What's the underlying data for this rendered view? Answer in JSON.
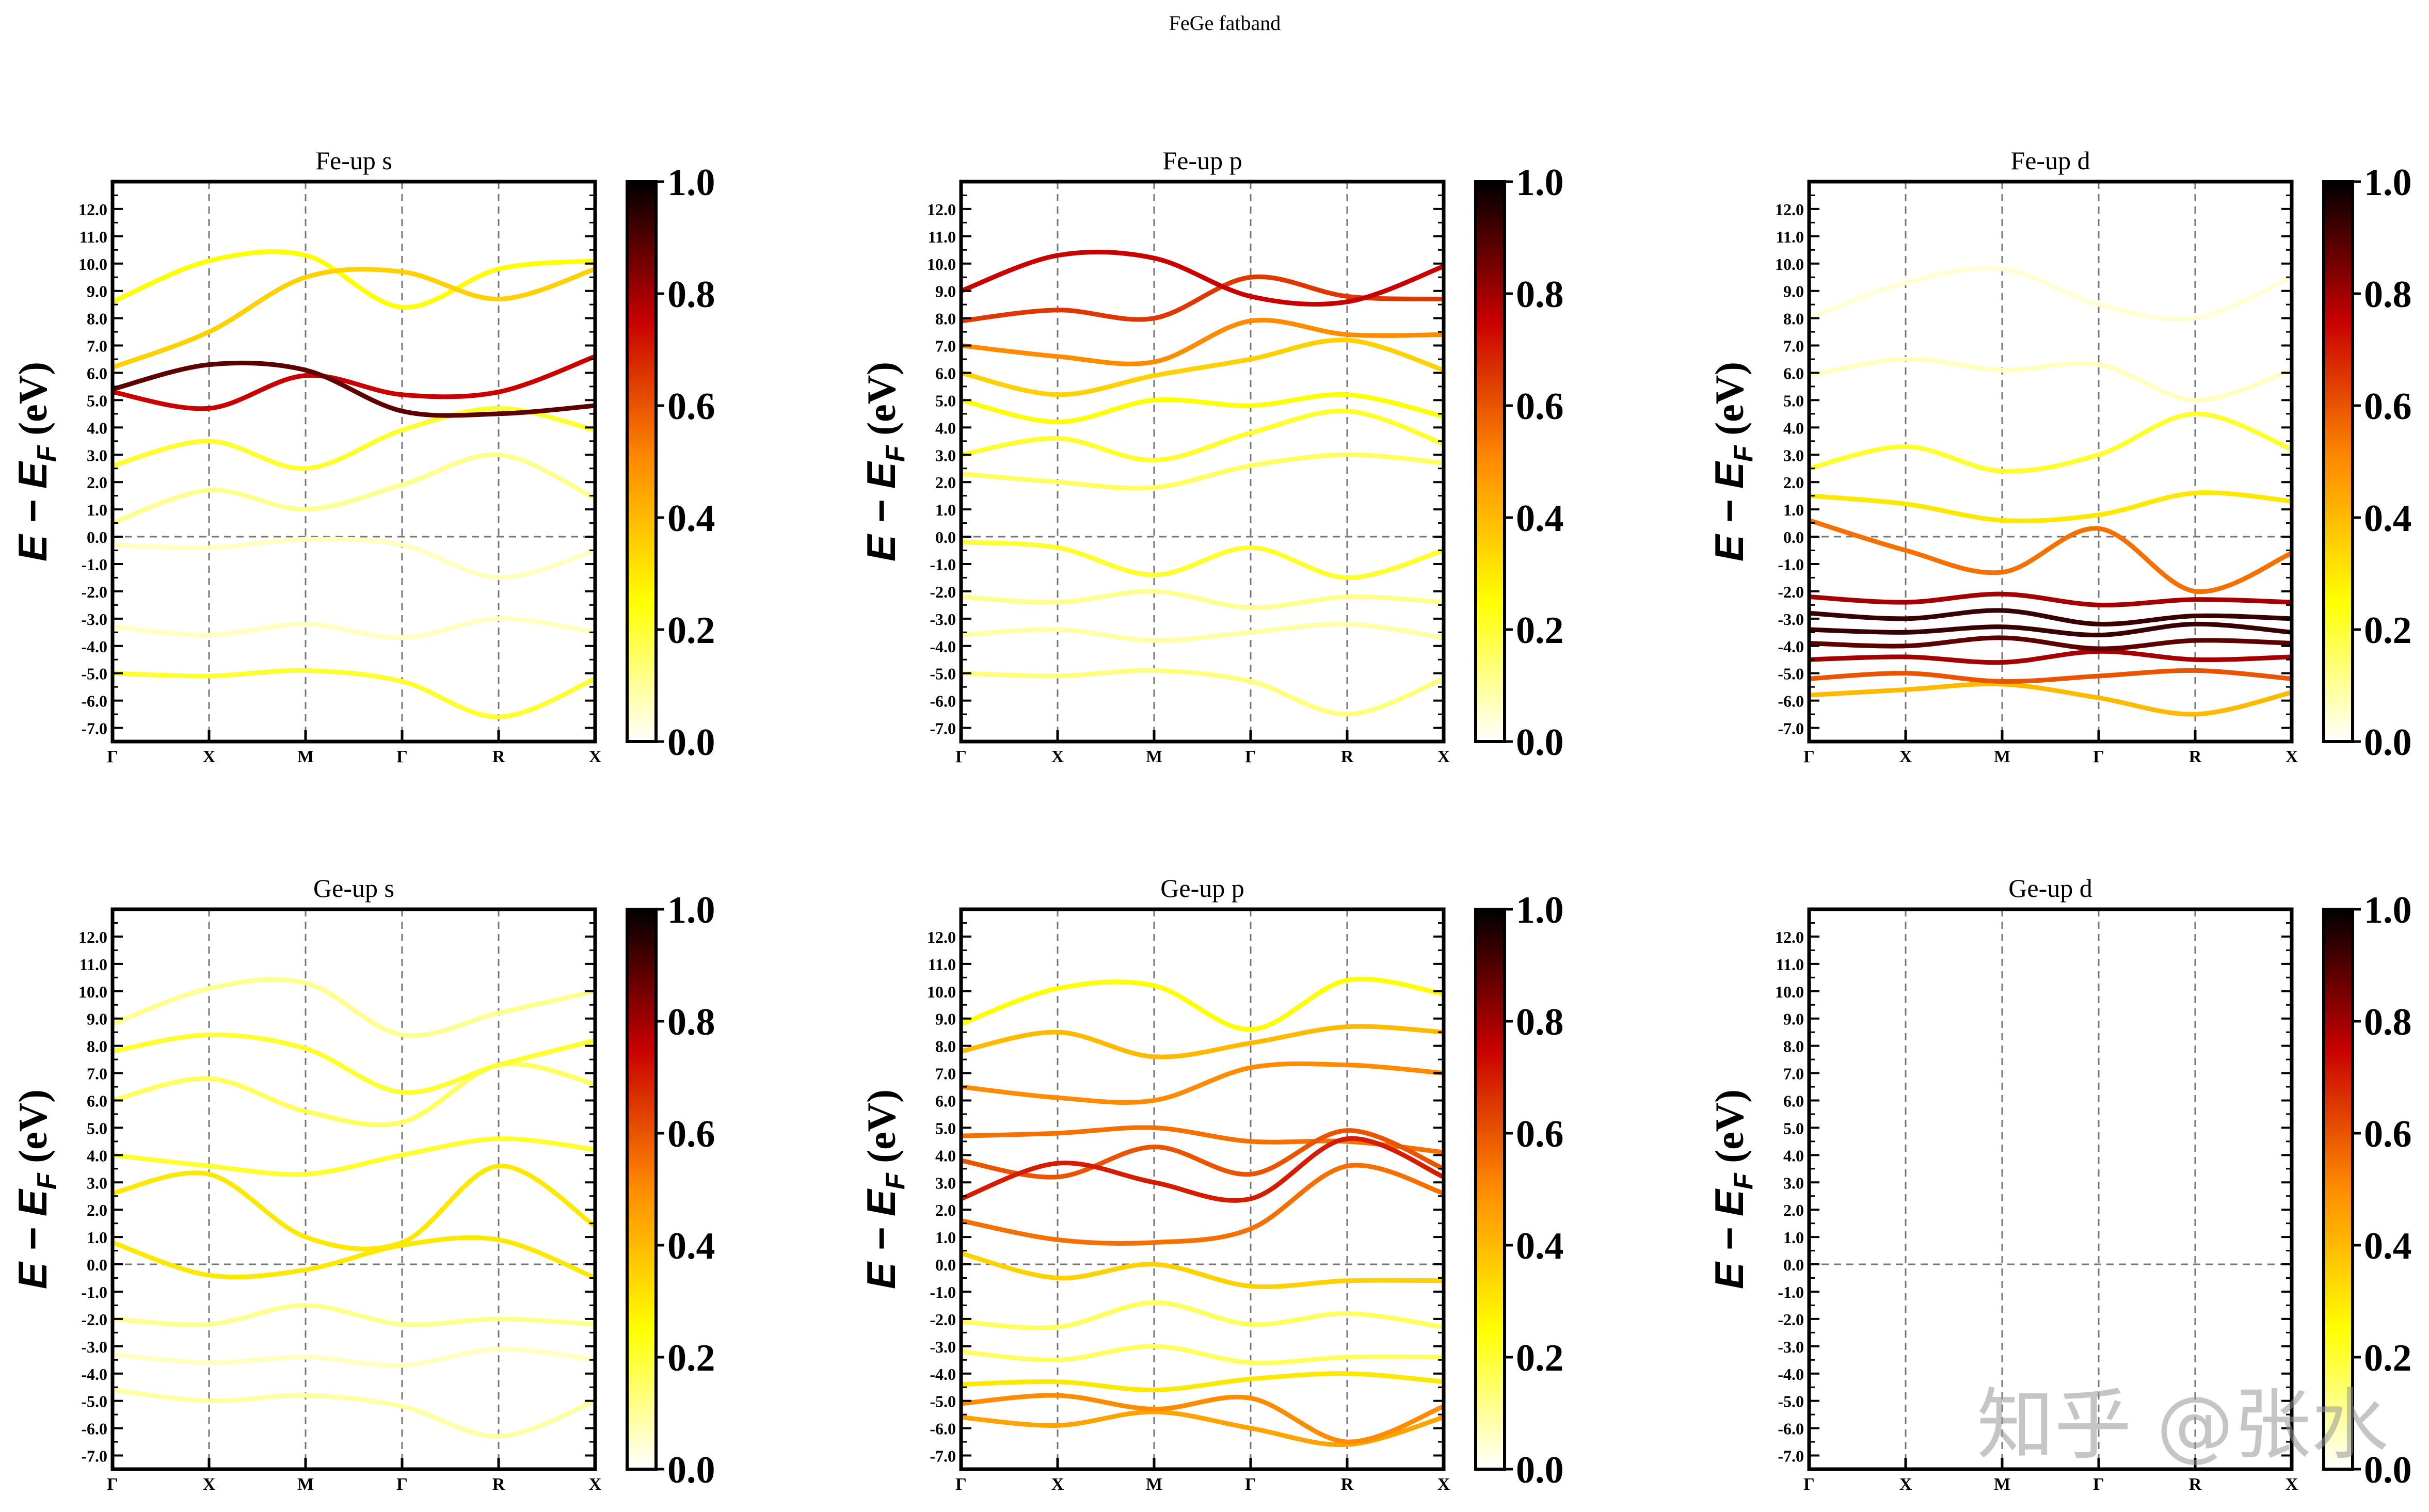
{
  "figure_title": "FeGe fatband",
  "watermark": "知乎 @张水",
  "chart_data": {
    "type": "fatband",
    "ylabel": "E − E_F (eV)",
    "ylim": [
      -7.5,
      13.0
    ],
    "yticks": [
      "-7.0",
      "-6.0",
      "-5.0",
      "-4.0",
      "-3.0",
      "-2.0",
      "-1.0",
      "0.0",
      "1.0",
      "2.0",
      "3.0",
      "4.0",
      "5.0",
      "6.0",
      "7.0",
      "8.0",
      "9.0",
      "10.0",
      "11.0",
      "12.0"
    ],
    "kpath": [
      "Γ",
      "X",
      "M",
      "Γ",
      "R",
      "X"
    ],
    "colorbar": {
      "cmap": "hot_r",
      "ticks": [
        "0.0",
        "0.2",
        "0.4",
        "0.6",
        "0.8",
        "1.0"
      ],
      "range": [
        0,
        1
      ]
    },
    "fermi_level": 0.0,
    "panels": [
      {
        "title": "Fe-up s",
        "bands": [
          {
            "e": [
              5.4,
              6.3,
              6.1,
              4.6,
              4.5,
              4.8
            ],
            "w": 0.9
          },
          {
            "e": [
              5.3,
              4.7,
              5.9,
              5.2,
              5.3,
              6.6
            ],
            "w": 0.75
          },
          {
            "e": [
              6.2,
              7.5,
              9.5,
              9.7,
              8.7,
              9.8
            ],
            "w": 0.35
          },
          {
            "e": [
              8.6,
              10.1,
              10.3,
              8.4,
              9.8,
              10.1
            ],
            "w": 0.25
          },
          {
            "e": [
              2.6,
              3.5,
              2.5,
              3.9,
              4.7,
              3.9
            ],
            "w": 0.2
          },
          {
            "e": [
              0.5,
              1.7,
              1.0,
              1.9,
              3.0,
              1.4
            ],
            "w": 0.1
          },
          {
            "e": [
              -0.3,
              -0.4,
              -0.1,
              -0.3,
              -1.5,
              -0.5
            ],
            "w": 0.05
          },
          {
            "e": [
              -3.3,
              -3.6,
              -3.2,
              -3.7,
              -3.0,
              -3.5
            ],
            "w": 0.05
          },
          {
            "e": [
              -5.0,
              -5.1,
              -4.9,
              -5.3,
              -6.6,
              -5.2
            ],
            "w": 0.2
          }
        ]
      },
      {
        "title": "Fe-up p",
        "bands": [
          {
            "e": [
              9.0,
              10.3,
              10.2,
              8.8,
              8.6,
              9.9
            ],
            "w": 0.75
          },
          {
            "e": [
              7.9,
              8.3,
              8.0,
              9.5,
              8.8,
              8.7
            ],
            "w": 0.65
          },
          {
            "e": [
              7.0,
              6.6,
              6.4,
              7.9,
              7.4,
              7.4
            ],
            "w": 0.5
          },
          {
            "e": [
              6.0,
              5.2,
              5.9,
              6.5,
              7.2,
              6.1
            ],
            "w": 0.35
          },
          {
            "e": [
              5.0,
              4.2,
              5.0,
              4.8,
              5.2,
              4.4
            ],
            "w": 0.25
          },
          {
            "e": [
              3.0,
              3.6,
              2.8,
              3.8,
              4.6,
              3.4
            ],
            "w": 0.2
          },
          {
            "e": [
              2.3,
              2.0,
              1.8,
              2.6,
              3.0,
              2.7
            ],
            "w": 0.15
          },
          {
            "e": [
              -0.2,
              -0.4,
              -1.4,
              -0.4,
              -1.5,
              -0.5
            ],
            "w": 0.2
          },
          {
            "e": [
              -2.2,
              -2.4,
              -2.0,
              -2.6,
              -2.2,
              -2.4
            ],
            "w": 0.1
          },
          {
            "e": [
              -3.6,
              -3.4,
              -3.8,
              -3.5,
              -3.2,
              -3.7
            ],
            "w": 0.08
          },
          {
            "e": [
              -5.0,
              -5.1,
              -4.9,
              -5.3,
              -6.5,
              -5.2
            ],
            "w": 0.12
          }
        ]
      },
      {
        "title": "Fe-up d",
        "bands": [
          {
            "e": [
              8.0,
              9.3,
              9.8,
              8.5,
              8.0,
              9.5
            ],
            "w": 0.03
          },
          {
            "e": [
              5.9,
              6.5,
              6.1,
              6.3,
              5.0,
              6.1
            ],
            "w": 0.05
          },
          {
            "e": [
              2.5,
              3.3,
              2.4,
              3.0,
              4.5,
              3.2
            ],
            "w": 0.2
          },
          {
            "e": [
              1.5,
              1.2,
              0.6,
              0.8,
              1.6,
              1.3
            ],
            "w": 0.3
          },
          {
            "e": [
              0.6,
              -0.5,
              -1.3,
              0.3,
              -2.0,
              -0.6
            ],
            "w": 0.55
          },
          {
            "e": [
              -2.2,
              -2.4,
              -2.1,
              -2.5,
              -2.3,
              -2.4
            ],
            "w": 0.8
          },
          {
            "e": [
              -2.8,
              -3.0,
              -2.7,
              -3.2,
              -2.9,
              -3.0
            ],
            "w": 0.95
          },
          {
            "e": [
              -3.4,
              -3.5,
              -3.3,
              -3.6,
              -3.2,
              -3.5
            ],
            "w": 0.95
          },
          {
            "e": [
              -3.9,
              -4.0,
              -3.7,
              -4.1,
              -3.8,
              -3.9
            ],
            "w": 0.9
          },
          {
            "e": [
              -4.5,
              -4.4,
              -4.6,
              -4.2,
              -4.5,
              -4.4
            ],
            "w": 0.8
          },
          {
            "e": [
              -5.2,
              -5.0,
              -5.3,
              -5.1,
              -4.9,
              -5.2
            ],
            "w": 0.6
          },
          {
            "e": [
              -5.8,
              -5.6,
              -5.4,
              -5.9,
              -6.5,
              -5.7
            ],
            "w": 0.4
          }
        ]
      },
      {
        "title": "Ge-up s",
        "bands": [
          {
            "e": [
              8.8,
              10.1,
              10.3,
              8.4,
              9.2,
              10.0
            ],
            "w": 0.1
          },
          {
            "e": [
              7.8,
              8.4,
              7.9,
              6.3,
              7.3,
              8.2
            ],
            "w": 0.2
          },
          {
            "e": [
              6.0,
              6.8,
              5.6,
              5.2,
              7.3,
              6.6
            ],
            "w": 0.15
          },
          {
            "e": [
              4.0,
              3.6,
              3.3,
              4.0,
              4.6,
              4.2
            ],
            "w": 0.2
          },
          {
            "e": [
              2.6,
              3.3,
              1.0,
              0.8,
              3.6,
              1.4
            ],
            "w": 0.3
          },
          {
            "e": [
              0.8,
              -0.4,
              -0.2,
              0.7,
              0.9,
              -0.5
            ],
            "w": 0.3
          },
          {
            "e": [
              -2.0,
              -2.2,
              -1.5,
              -2.2,
              -2.0,
              -2.2
            ],
            "w": 0.1
          },
          {
            "e": [
              -3.3,
              -3.6,
              -3.4,
              -3.7,
              -3.1,
              -3.5
            ],
            "w": 0.05
          },
          {
            "e": [
              -4.6,
              -5.0,
              -4.8,
              -5.2,
              -6.3,
              -5.0
            ],
            "w": 0.08
          }
        ]
      },
      {
        "title": "Ge-up p",
        "bands": [
          {
            "e": [
              8.8,
              10.1,
              10.2,
              8.6,
              10.4,
              9.9
            ],
            "w": 0.25
          },
          {
            "e": [
              7.8,
              8.5,
              7.6,
              8.1,
              8.7,
              8.5
            ],
            "w": 0.4
          },
          {
            "e": [
              6.5,
              6.1,
              6.0,
              7.2,
              7.3,
              7.0
            ],
            "w": 0.5
          },
          {
            "e": [
              4.7,
              4.8,
              5.0,
              4.5,
              4.5,
              4.1
            ],
            "w": 0.55
          },
          {
            "e": [
              3.8,
              3.2,
              4.3,
              3.3,
              4.9,
              3.5
            ],
            "w": 0.6
          },
          {
            "e": [
              2.4,
              3.7,
              3.0,
              2.4,
              4.6,
              3.2
            ],
            "w": 0.7
          },
          {
            "e": [
              1.6,
              0.9,
              0.8,
              1.3,
              3.6,
              2.6
            ],
            "w": 0.55
          },
          {
            "e": [
              0.4,
              -0.5,
              0.0,
              -0.8,
              -0.6,
              -0.6
            ],
            "w": 0.35
          },
          {
            "e": [
              -2.1,
              -2.3,
              -1.4,
              -2.2,
              -1.8,
              -2.3
            ],
            "w": 0.15
          },
          {
            "e": [
              -3.2,
              -3.5,
              -3.0,
              -3.6,
              -3.4,
              -3.4
            ],
            "w": 0.15
          },
          {
            "e": [
              -4.4,
              -4.3,
              -4.6,
              -4.2,
              -4.0,
              -4.3
            ],
            "w": 0.3
          },
          {
            "e": [
              -5.1,
              -4.8,
              -5.3,
              -4.9,
              -6.5,
              -5.2
            ],
            "w": 0.5
          },
          {
            "e": [
              -5.6,
              -5.9,
              -5.4,
              -6.0,
              -6.6,
              -5.6
            ],
            "w": 0.45
          }
        ]
      },
      {
        "title": "Ge-up d",
        "bands": []
      }
    ]
  }
}
